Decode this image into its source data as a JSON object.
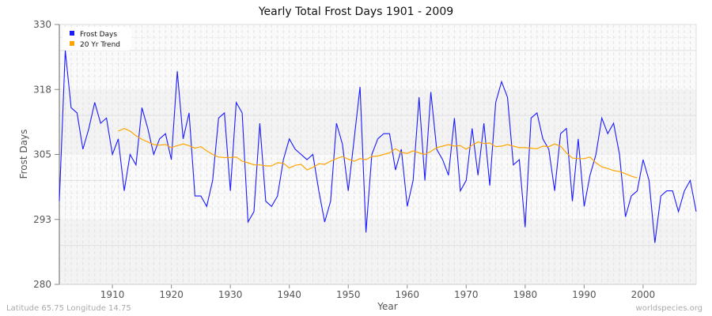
{
  "chart_data": {
    "type": "line",
    "title": "Yearly Total Frost Days 1901 - 2009",
    "xlabel": "Year",
    "ylabel": "Frost Days",
    "xlim": [
      1901,
      2009
    ],
    "ylim": [
      280,
      330
    ],
    "xticks": [
      1910,
      1920,
      1930,
      1940,
      1950,
      1960,
      1970,
      1980,
      1990,
      2000
    ],
    "yticks": [
      280,
      293,
      305,
      318,
      330
    ],
    "grid": true,
    "legend_position": "top-left",
    "series": [
      {
        "name": "Frost Days",
        "color": "#1a1aff",
        "x_start": 1901,
        "values": [
          296,
          325,
          314,
          313,
          306,
          310,
          315,
          311,
          312,
          305,
          308,
          298,
          305,
          303,
          314,
          310,
          305,
          308,
          309,
          304,
          321,
          308,
          313,
          297,
          297,
          295,
          300,
          312,
          313,
          298,
          315,
          313,
          292,
          294,
          311,
          296,
          295,
          297,
          304,
          308,
          306,
          305,
          304,
          305,
          298,
          292,
          296,
          311,
          307,
          298,
          308,
          318,
          290,
          305,
          308,
          309,
          309,
          302,
          306,
          295,
          300,
          316,
          300,
          317,
          306,
          304,
          301,
          312,
          298,
          300,
          310,
          301,
          311,
          299,
          315,
          319,
          316,
          303,
          304,
          291,
          312,
          313,
          308,
          306,
          298,
          309,
          310,
          296,
          308,
          295,
          301,
          305,
          312,
          309,
          311,
          305,
          293,
          297,
          298,
          304,
          300,
          288,
          297,
          298,
          298,
          294,
          298,
          300,
          294
        ]
      },
      {
        "name": "20 Yr Trend",
        "color": "#ffa500",
        "x_start": 1911,
        "values": [
          309.5,
          310.0,
          309.5,
          308.6,
          307.9,
          307.4,
          306.9,
          306.8,
          306.9,
          306.3,
          306.7,
          307.0,
          306.7,
          306.2,
          306.5,
          305.7,
          305.0,
          304.5,
          304.4,
          304.4,
          304.5,
          303.7,
          303.4,
          303.0,
          303.0,
          302.8,
          302.8,
          303.4,
          303.3,
          302.4,
          302.9,
          303.1,
          302.0,
          302.5,
          303.2,
          303.1,
          303.7,
          304.2,
          304.6,
          304.1,
          303.7,
          304.2,
          304.0,
          304.6,
          304.7,
          305.0,
          305.3,
          306.1,
          305.4,
          305.2,
          305.7,
          305.3,
          305.0,
          305.6,
          306.3,
          306.6,
          306.9,
          306.6,
          306.7,
          306.0,
          306.8,
          307.4,
          307.1,
          307.2,
          306.5,
          306.6,
          306.9,
          306.6,
          306.3,
          306.3,
          306.2,
          306.1,
          306.6,
          306.5,
          307.0,
          306.6,
          305.3,
          304.3,
          304.2,
          304.2,
          304.5,
          303.4,
          302.6,
          302.3,
          301.9,
          301.7,
          301.3,
          300.8,
          300.5
        ]
      }
    ]
  },
  "footer": {
    "location": "Latitude 65.75 Longitude 14.75",
    "source": "worldspecies.org"
  }
}
